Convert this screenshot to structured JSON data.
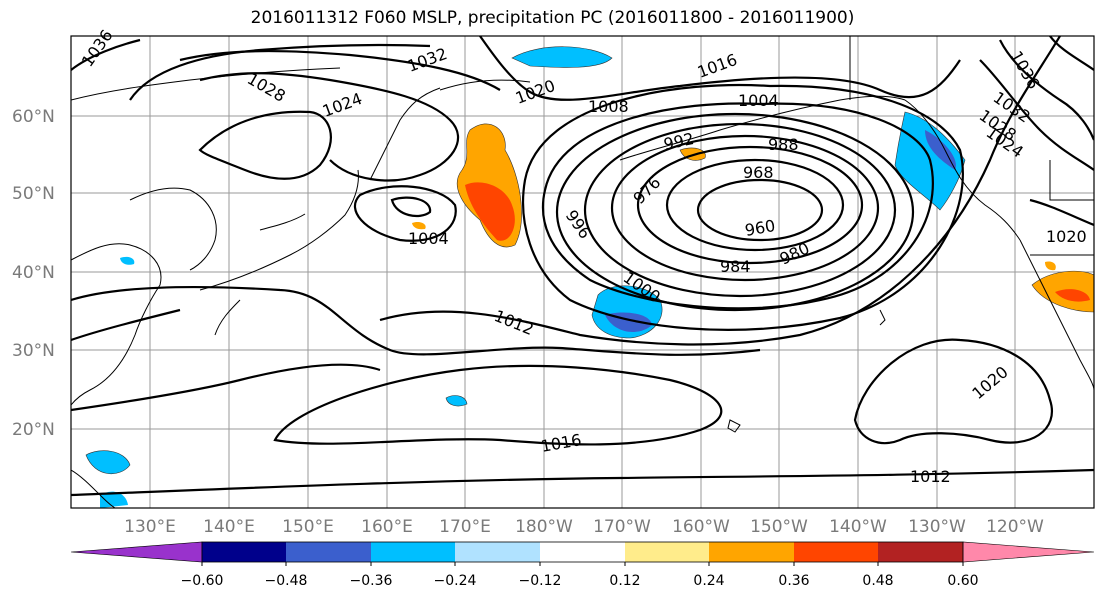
{
  "title": "2016011312 F060 MSLP, precipitation PC (2016011800 - 2016011900)",
  "latitude_labels": [
    "60°N",
    "50°N",
    "40°N",
    "30°N",
    "20°N"
  ],
  "longitude_labels": [
    "130°E",
    "140°E",
    "150°E",
    "160°E",
    "170°E",
    "180°W",
    "170°W",
    "160°W",
    "150°W",
    "140°W",
    "130°W",
    "120°W"
  ],
  "isobar_labels": [
    "1036",
    "1032",
    "1028",
    "1024",
    "1020",
    "1016",
    "1008",
    "1004",
    "992",
    "988",
    "976",
    "968",
    "960",
    "996",
    "984",
    "980",
    "1004",
    "1000",
    "1012",
    "1016",
    "1020",
    "1012",
    "1020",
    "1036",
    "1032",
    "1028",
    "1024"
  ],
  "colorbar": {
    "ticks": [
      "−0.60",
      "−0.48",
      "−0.36",
      "−0.24",
      "−0.12",
      "0.12",
      "0.24",
      "0.36",
      "0.48",
      "0.60"
    ],
    "colors": [
      "#9932cc",
      "#00008b",
      "#3b5fcd",
      "#00bfff",
      "#b0e2ff",
      "#ffffff",
      "#ffec8b",
      "#ffa500",
      "#ff4500",
      "#b22222",
      "#ff88aa"
    ]
  }
}
